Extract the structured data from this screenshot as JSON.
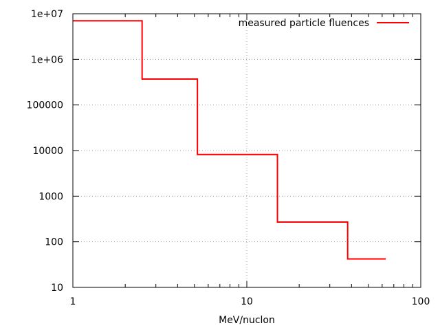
{
  "chart_data": {
    "type": "line",
    "title": "",
    "xlabel": "MeV/nuclon",
    "ylabel": "",
    "xscale": "log",
    "yscale": "log",
    "xlim": [
      1,
      100
    ],
    "ylim": [
      10,
      10000000
    ],
    "grid": true,
    "legend_position": "top-right",
    "x_tick_labels": [
      "1",
      "10",
      "100"
    ],
    "y_tick_labels": [
      "10",
      "100",
      "1000",
      "10000",
      "100000",
      "1e+06",
      "1e+07"
    ],
    "series": [
      {
        "name": "measured particle fluences",
        "color": "#ff0000",
        "style": "steps",
        "x": [
          1,
          2.5,
          5.2,
          15,
          38,
          63
        ],
        "y": [
          7000000,
          370000,
          8200,
          270,
          42,
          42
        ]
      }
    ]
  }
}
